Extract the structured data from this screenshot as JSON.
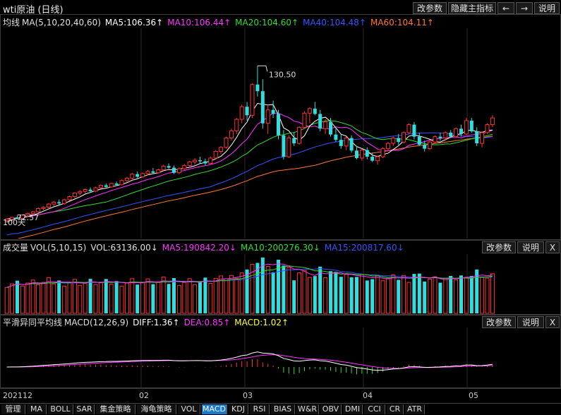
{
  "window_title": "wti原油 (日线)",
  "top_buttons": {
    "params": "改参数",
    "hide": "隐藏主指标",
    "back": "←",
    "forward": "→",
    "help": "说明"
  },
  "main_panel": {
    "indicator_name": "均线",
    "ma_label": "MA(5,10,20,40,60)",
    "ma5": "MA5:106.36↑",
    "ma10": "MA10:106.44↑",
    "ma20": "MA20:104.60↑",
    "ma40": "MA40:104.48↑",
    "ma60": "MA60:104.11↑",
    "high_label": "130.50",
    "low_label": "72.57",
    "days_label": "100天",
    "colors": {
      "ma5": "#ffffff",
      "ma10": "#ff33ff",
      "ma20": "#33dd33",
      "ma40": "#3355ff",
      "ma60": "#ff7733",
      "up": "#ff3333",
      "down": "#33dddd"
    }
  },
  "volume_panel": {
    "name": "成交量",
    "vol_label": "VOL(5,10,15)",
    "vol": "VOL:63136.00↓",
    "ma5": "MA5:190842.20↓",
    "ma10": "MA10:200276.30↓",
    "ma15": "MA15:200817.60↓",
    "buttons": {
      "params": "改参数",
      "help": "说明",
      "close": "X"
    }
  },
  "macd_panel": {
    "name": "平滑异同平均线",
    "macd_label": "MACD(12,26,9)",
    "diff": "DIFF:1.36↑",
    "dea": "DEA:0.85↑",
    "macd": "MACD:1.02↑",
    "buttons": {
      "params": "改参数",
      "help": "说明",
      "close": "X"
    }
  },
  "x_axis": {
    "labels": [
      "202112",
      "02",
      "03",
      "04",
      "05"
    ]
  },
  "bottom_tabs": [
    "管理",
    "MA",
    "BOLL",
    "SAR",
    "集金策略",
    "海龟策略",
    "VOL",
    "MACD",
    "KDJ",
    "RSI",
    "BIAS",
    "W&R",
    "OBV",
    "DMI",
    "CCI",
    "CR",
    "ATR"
  ],
  "active_tab": "MACD",
  "chart_data": {
    "type": "candlestick",
    "title": "wti原油 (日线)",
    "y_range": [
      68,
      134
    ],
    "candles": [
      [
        72.6,
        73.5,
        72.0,
        73.2
      ],
      [
        73.0,
        74.1,
        72.5,
        73.8
      ],
      [
        73.8,
        74.5,
        73.0,
        73.4
      ],
      [
        73.4,
        75.0,
        73.2,
        74.8
      ],
      [
        74.8,
        75.6,
        74.0,
        75.3
      ],
      [
        75.3,
        76.2,
        74.8,
        75.9
      ],
      [
        75.9,
        77.5,
        75.5,
        77.1
      ],
      [
        77.1,
        78.0,
        76.5,
        77.6
      ],
      [
        77.6,
        79.2,
        77.0,
        78.8
      ],
      [
        78.8,
        80.0,
        78.0,
        79.5
      ],
      [
        79.5,
        80.5,
        78.5,
        79.0
      ],
      [
        79.0,
        80.8,
        78.6,
        80.4
      ],
      [
        80.4,
        82.0,
        80.0,
        81.6
      ],
      [
        81.6,
        83.2,
        81.0,
        82.9
      ],
      [
        82.9,
        84.0,
        82.0,
        83.5
      ],
      [
        83.5,
        84.6,
        82.8,
        84.2
      ],
      [
        84.2,
        85.0,
        83.0,
        83.6
      ],
      [
        83.6,
        85.3,
        83.2,
        84.9
      ],
      [
        84.9,
        86.1,
        84.5,
        85.8
      ],
      [
        85.8,
        86.5,
        85.0,
        85.2
      ],
      [
        85.2,
        86.8,
        84.9,
        86.5
      ],
      [
        86.5,
        87.2,
        85.5,
        86.0
      ],
      [
        86.0,
        88.0,
        85.8,
        87.6
      ],
      [
        87.6,
        89.0,
        87.0,
        88.5
      ],
      [
        88.5,
        90.5,
        88.0,
        90.0
      ],
      [
        90.0,
        91.0,
        88.5,
        89.0
      ],
      [
        89.0,
        90.6,
        88.6,
        90.2
      ],
      [
        90.2,
        91.5,
        89.5,
        91.0
      ],
      [
        91.0,
        92.3,
        90.0,
        90.5
      ],
      [
        90.5,
        92.0,
        90.2,
        91.6
      ],
      [
        91.6,
        93.5,
        91.0,
        93.0
      ],
      [
        93.0,
        94.0,
        92.0,
        92.4
      ],
      [
        92.4,
        93.2,
        90.0,
        90.5
      ],
      [
        90.5,
        92.5,
        90.0,
        92.0
      ],
      [
        92.0,
        93.8,
        91.5,
        93.2
      ],
      [
        93.2,
        95.0,
        92.5,
        94.6
      ],
      [
        94.6,
        96.0,
        93.5,
        95.2
      ],
      [
        95.2,
        96.5,
        94.0,
        94.8
      ],
      [
        94.8,
        95.8,
        93.2,
        94.0
      ],
      [
        94.0,
        96.5,
        93.8,
        96.0
      ],
      [
        96.0,
        99.0,
        95.5,
        98.5
      ],
      [
        98.5,
        100.5,
        97.5,
        100.0
      ],
      [
        100.0,
        104.0,
        99.5,
        103.5
      ],
      [
        103.5,
        107.0,
        102.5,
        106.2
      ],
      [
        106.2,
        111.0,
        105.0,
        110.5
      ],
      [
        110.5,
        116.0,
        109.0,
        115.2
      ],
      [
        115.2,
        117.0,
        110.0,
        112.0
      ],
      [
        112.0,
        124.0,
        111.0,
        123.5
      ],
      [
        123.5,
        130.5,
        119.0,
        121.0
      ],
      [
        121.0,
        125.5,
        107.0,
        109.0
      ],
      [
        109.0,
        116.0,
        105.0,
        114.0
      ],
      [
        114.0,
        117.5,
        111.0,
        112.5
      ],
      [
        112.5,
        114.0,
        103.0,
        104.5
      ],
      [
        104.5,
        106.5,
        95.5,
        96.5
      ],
      [
        96.5,
        104.5,
        96.0,
        103.5
      ],
      [
        103.5,
        105.5,
        100.5,
        101.5
      ],
      [
        101.5,
        108.0,
        101.0,
        107.5
      ],
      [
        107.5,
        113.5,
        107.0,
        112.8
      ],
      [
        112.8,
        115.0,
        109.0,
        114.5
      ],
      [
        114.5,
        117.0,
        112.0,
        112.5
      ],
      [
        112.5,
        114.0,
        106.0,
        107.0
      ],
      [
        107.0,
        110.5,
        105.0,
        109.5
      ],
      [
        109.5,
        111.0,
        104.0,
        104.8
      ],
      [
        104.8,
        107.0,
        102.0,
        102.8
      ],
      [
        102.8,
        105.0,
        99.5,
        100.5
      ],
      [
        100.5,
        104.0,
        99.0,
        103.5
      ],
      [
        103.5,
        104.5,
        98.0,
        98.8
      ],
      [
        98.8,
        100.5,
        95.5,
        96.0
      ],
      [
        96.0,
        99.5,
        95.0,
        99.0
      ],
      [
        99.0,
        100.0,
        95.5,
        96.5
      ],
      [
        96.5,
        98.0,
        94.5,
        95.0
      ],
      [
        95.0,
        97.0,
        93.5,
        96.5
      ],
      [
        96.5,
        100.0,
        96.0,
        99.5
      ],
      [
        99.5,
        102.0,
        98.5,
        101.5
      ],
      [
        101.5,
        104.0,
        100.5,
        103.5
      ],
      [
        103.5,
        105.0,
        101.0,
        102.0
      ],
      [
        102.0,
        106.0,
        101.5,
        105.5
      ],
      [
        105.5,
        109.0,
        105.0,
        108.5
      ],
      [
        108.5,
        109.5,
        103.0,
        104.0
      ],
      [
        104.0,
        105.5,
        100.5,
        101.0
      ],
      [
        101.0,
        102.5,
        98.5,
        99.5
      ],
      [
        99.5,
        102.5,
        99.0,
        102.0
      ],
      [
        102.0,
        104.5,
        101.5,
        104.0
      ],
      [
        104.0,
        105.5,
        102.5,
        103.5
      ],
      [
        103.5,
        106.0,
        102.5,
        105.5
      ],
      [
        105.5,
        106.5,
        103.5,
        104.0
      ],
      [
        104.0,
        107.5,
        103.5,
        107.0
      ],
      [
        107.0,
        108.5,
        104.0,
        105.0
      ],
      [
        105.0,
        111.0,
        104.5,
        110.0
      ],
      [
        110.0,
        111.0,
        105.5,
        106.0
      ],
      [
        106.0,
        107.5,
        100.5,
        101.5
      ],
      [
        101.5,
        106.0,
        100.0,
        105.5
      ],
      [
        105.5,
        109.0,
        105.0,
        108.5
      ],
      [
        108.5,
        112.0,
        107.5,
        111.0
      ]
    ]
  }
}
